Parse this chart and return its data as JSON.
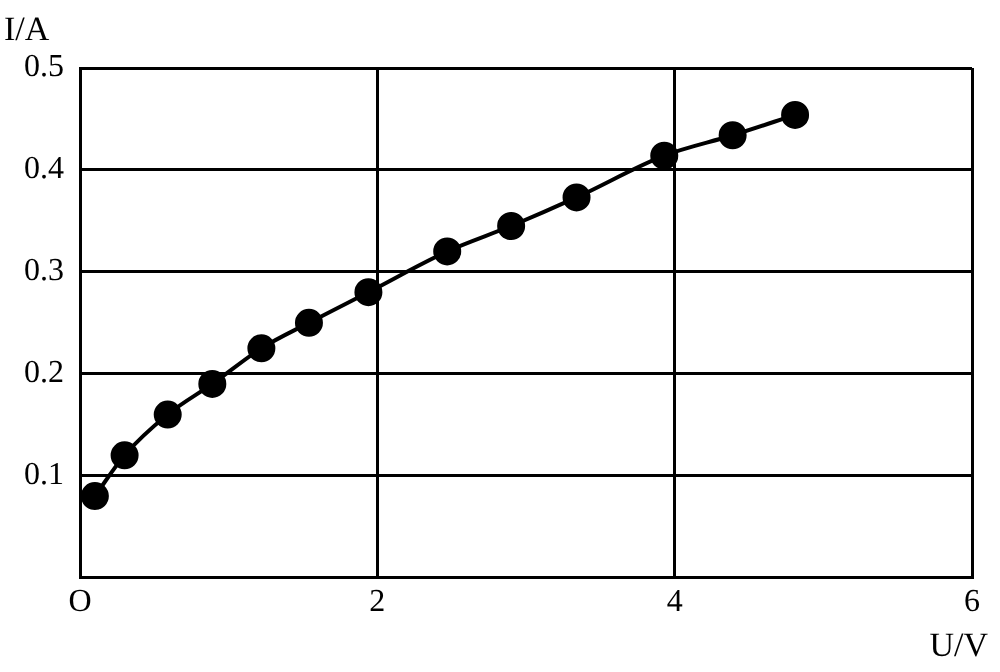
{
  "chart_data": {
    "type": "line",
    "xlabel": "U/V",
    "ylabel": "I/A",
    "x": [
      0.1,
      0.3,
      0.59,
      0.89,
      1.22,
      1.54,
      1.94,
      2.47,
      2.9,
      3.34,
      3.93,
      4.39,
      4.81
    ],
    "series": [
      {
        "color": "#000000",
        "values": [
          0.08,
          0.12,
          0.16,
          0.19,
          0.225,
          0.25,
          0.28,
          0.32,
          0.345,
          0.373,
          0.414,
          0.434,
          0.454
        ]
      }
    ],
    "xlim": [
      0,
      6
    ],
    "xticks": [
      {
        "value": 0,
        "label": "O"
      },
      2,
      4,
      6
    ],
    "ylim": [
      0,
      0.5
    ],
    "yticks": [
      0.1,
      0.2,
      0.3,
      0.4,
      0.5
    ],
    "grid": true,
    "legend": false,
    "marker": "circle",
    "line_style": "solid"
  }
}
